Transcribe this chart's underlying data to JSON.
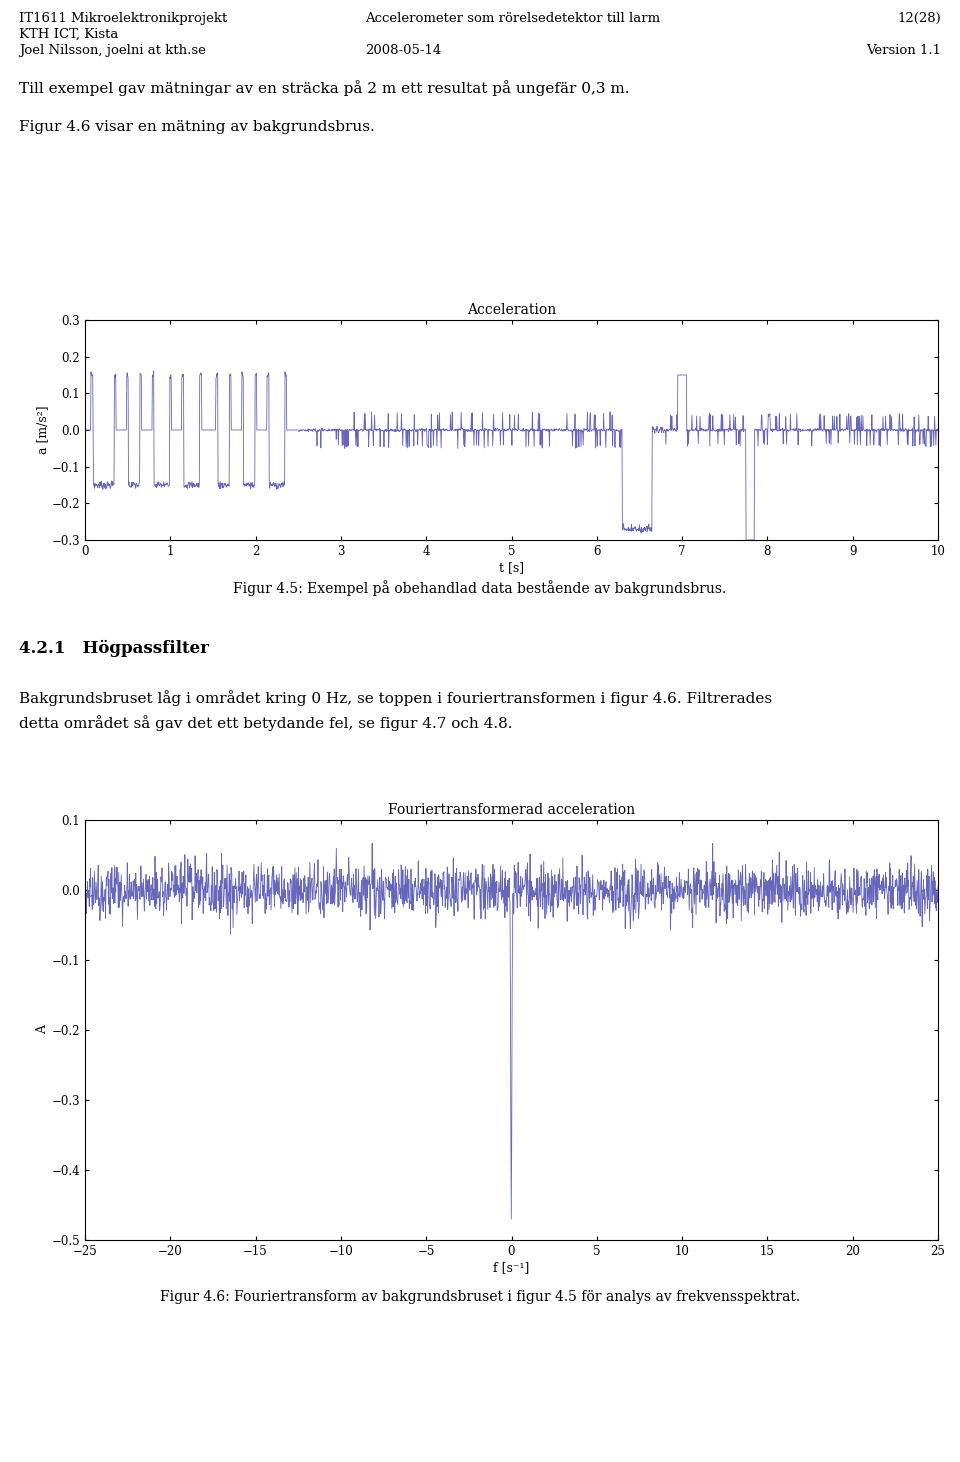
{
  "header_left1": "IT1611 Mikroelektronikprojekt",
  "header_center1": "Accelerometer som rörelsedetektor till larm",
  "header_right1": "12(28)",
  "header_left2": "KTH ICT, Kista",
  "header_left3": "Joel Nilsson, joelni at kth.se",
  "header_center3": "2008-05-14",
  "header_right3": "Version 1.1",
  "text1": "Till exempel gav mätningar av en sträcka på 2 m ett resultat på ungefär 0,3 m.",
  "text2": "Figur 4.6 visar en mätning av bakgrundsbrus.",
  "fig1_title": "Acceleration",
  "fig1_ylabel": "a [m/s²]",
  "fig1_xlabel": "t [s]",
  "fig1_xlim": [
    0,
    10
  ],
  "fig1_ylim": [
    -0.3,
    0.3
  ],
  "fig1_yticks": [
    -0.3,
    -0.2,
    -0.1,
    0,
    0.1,
    0.2,
    0.3
  ],
  "fig1_xticks": [
    0,
    1,
    2,
    3,
    4,
    5,
    6,
    7,
    8,
    9,
    10
  ],
  "fig1_color": "#6666bb",
  "caption1": "Figur 4.5: Exempel på obehandlad data bestående av bakgrundsbrus.",
  "section": "4.2.1",
  "section_title": "Högpassfilter",
  "body_line1": "Bakgrundsbruset låg i området kring 0 Hz, se toppen i fouriertransformen i figur 4.6. Filtrerades",
  "body_line2": "detta området så gav det ett betydande fel, se figur 4.7 och 4.8.",
  "fig2_title": "Fouriertransformerad acceleration",
  "fig2_ylabel": "A",
  "fig2_xlabel": "f [s⁻¹]",
  "fig2_xlim": [
    -25,
    25
  ],
  "fig2_ylim": [
    -0.5,
    0.1
  ],
  "fig2_yticks": [
    -0.5,
    -0.4,
    -0.3,
    -0.2,
    -0.1,
    0,
    0.1
  ],
  "fig2_xticks": [
    -25,
    -20,
    -15,
    -10,
    -5,
    0,
    5,
    10,
    15,
    20,
    25
  ],
  "fig2_color": "#6666bb",
  "caption2": "Figur 4.6: Fouriertransform av bakgrundsbruset i figur 4.5 för analys av frekvensspektrat."
}
